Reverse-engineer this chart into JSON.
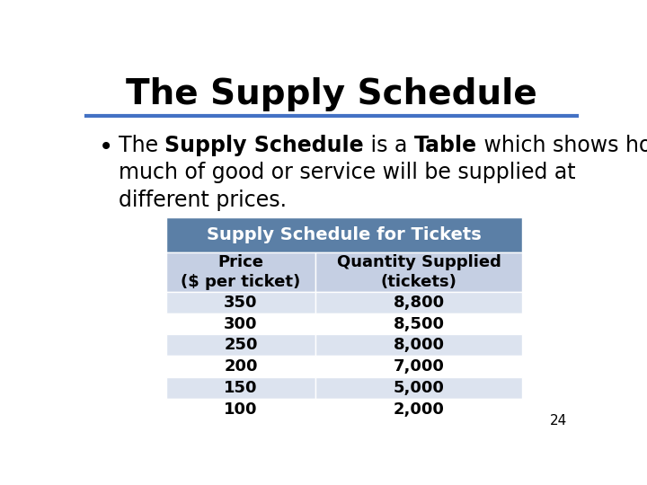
{
  "title": "The Supply Schedule",
  "table_title": "Supply Schedule for Tickets",
  "col_headers": [
    "Price\n($ per ticket)",
    "Quantity Supplied\n(tickets)"
  ],
  "table_data": [
    [
      "350",
      "8,800"
    ],
    [
      "300",
      "8,500"
    ],
    [
      "250",
      "8,000"
    ],
    [
      "200",
      "7,000"
    ],
    [
      "150",
      "5,000"
    ],
    [
      "100",
      "2,000"
    ]
  ],
  "header_bg": "#5b7fa6",
  "subheader_bg": "#c5cfe3",
  "row_bg_odd": "#dce3ef",
  "row_bg_even": "#ffffff",
  "divider_color": "#4472c4",
  "page_number": "24",
  "background_color": "#ffffff",
  "title_fontsize": 28,
  "bullet_fontsize": 17,
  "table_header_fontsize": 13,
  "table_data_fontsize": 13,
  "line1_parts": [
    [
      "The ",
      false
    ],
    [
      "Supply Schedule",
      true
    ],
    [
      " is a ",
      false
    ],
    [
      "Table",
      true
    ],
    [
      " which shows how",
      false
    ]
  ],
  "line2_parts": [
    [
      "much of good or service will be supplied at",
      false
    ]
  ],
  "line3_parts": [
    [
      "different prices.",
      false
    ]
  ]
}
